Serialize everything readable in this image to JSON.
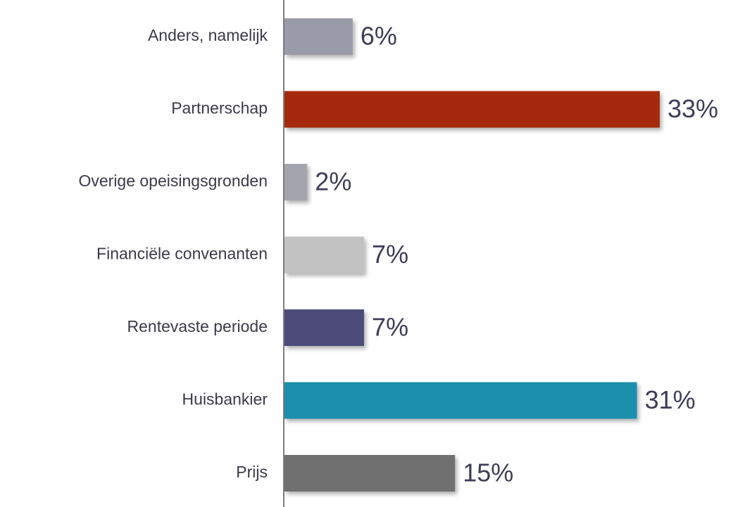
{
  "chart_data": {
    "type": "bar",
    "orientation": "horizontal",
    "categories": [
      "Anders, namelijk",
      "Partnerschap",
      "Overige opeisingsgronden",
      "Financiële convenanten",
      "Rentevaste periode",
      "Huisbankier",
      "Prijs"
    ],
    "values": [
      6,
      33,
      2,
      7,
      7,
      31,
      15
    ],
    "value_labels": [
      "6%",
      "33%",
      "2%",
      "7%",
      "7%",
      "31%",
      "15%"
    ],
    "colors": [
      "#9a9ba8",
      "#a52a0a",
      "#a4a4ae",
      "#c2c2c2",
      "#4d4c79",
      "#1f8fad",
      "#6f6f6f"
    ]
  }
}
